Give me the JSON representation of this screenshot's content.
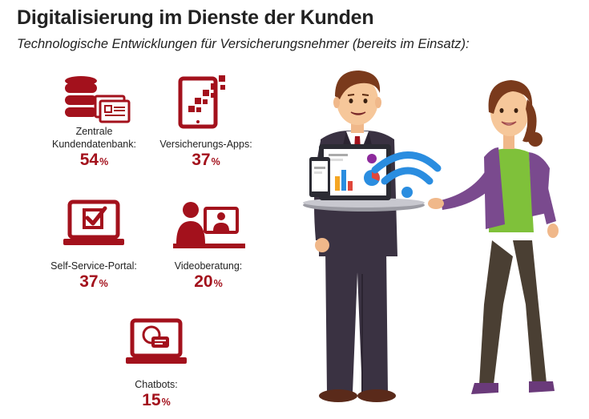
{
  "header": {
    "title": "Digitalisierung im Dienste der Kunden",
    "subtitle": "Technologische Entwicklungen für Versicherungsnehmer (bereits im Einsatz):"
  },
  "colors": {
    "accent": "#a3111c",
    "text": "#222222"
  },
  "stats": [
    {
      "label_line1": "Zentrale",
      "label_line2": "Kundendatenbank:",
      "value": "54",
      "unit": "%",
      "icon": "database-icon"
    },
    {
      "label_line1": "Versicherungs-Apps:",
      "value": "37",
      "unit": "%",
      "icon": "tablet-apps-icon"
    },
    {
      "label_line1": "Self-Service-Portal:",
      "value": "37",
      "unit": "%",
      "icon": "laptop-checkbox-icon"
    },
    {
      "label_line1": "Videoberatung:",
      "value": "20",
      "unit": "%",
      "icon": "video-call-icon"
    },
    {
      "label_line1": "Chatbots:",
      "value": "15",
      "unit": "%",
      "icon": "laptop-chat-icon"
    }
  ],
  "illustration": {
    "name": "agent-offering-tablet-to-customer"
  }
}
